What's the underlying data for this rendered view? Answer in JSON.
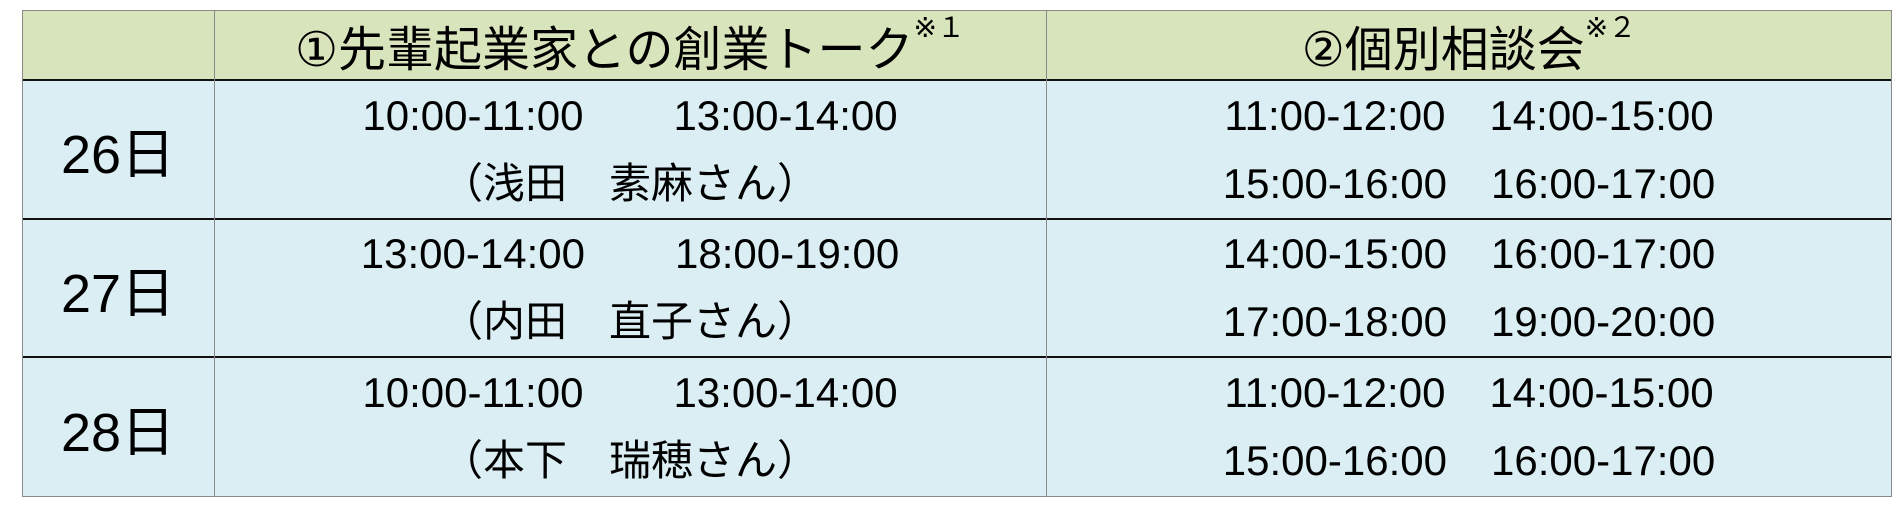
{
  "header": {
    "col1": "①先輩起業家との創業トーク",
    "col1_note": "※１",
    "col2": "②個別相談会",
    "col2_note": "※２"
  },
  "colors": {
    "header_bg": "#d8e4bc",
    "body_bg": "#daeef3"
  },
  "rows": [
    {
      "day": "26日",
      "talk_times": [
        "10:00-11:00",
        "13:00-14:00"
      ],
      "speaker": "（浅田　素麻さん）",
      "consult": [
        [
          "11:00-12:00",
          "14:00-15:00"
        ],
        [
          "15:00-16:00",
          "16:00-17:00"
        ]
      ]
    },
    {
      "day": "27日",
      "talk_times": [
        "13:00-14:00",
        "18:00-19:00"
      ],
      "speaker": "（内田　直子さん）",
      "consult": [
        [
          "14:00-15:00",
          "16:00-17:00"
        ],
        [
          "17:00-18:00",
          "19:00-20:00"
        ]
      ]
    },
    {
      "day": "28日",
      "talk_times": [
        "10:00-11:00",
        "13:00-14:00"
      ],
      "speaker": "（本下　瑞穂さん）",
      "consult": [
        [
          "11:00-12:00",
          "14:00-15:00"
        ],
        [
          "15:00-16:00",
          "16:00-17:00"
        ]
      ]
    }
  ]
}
